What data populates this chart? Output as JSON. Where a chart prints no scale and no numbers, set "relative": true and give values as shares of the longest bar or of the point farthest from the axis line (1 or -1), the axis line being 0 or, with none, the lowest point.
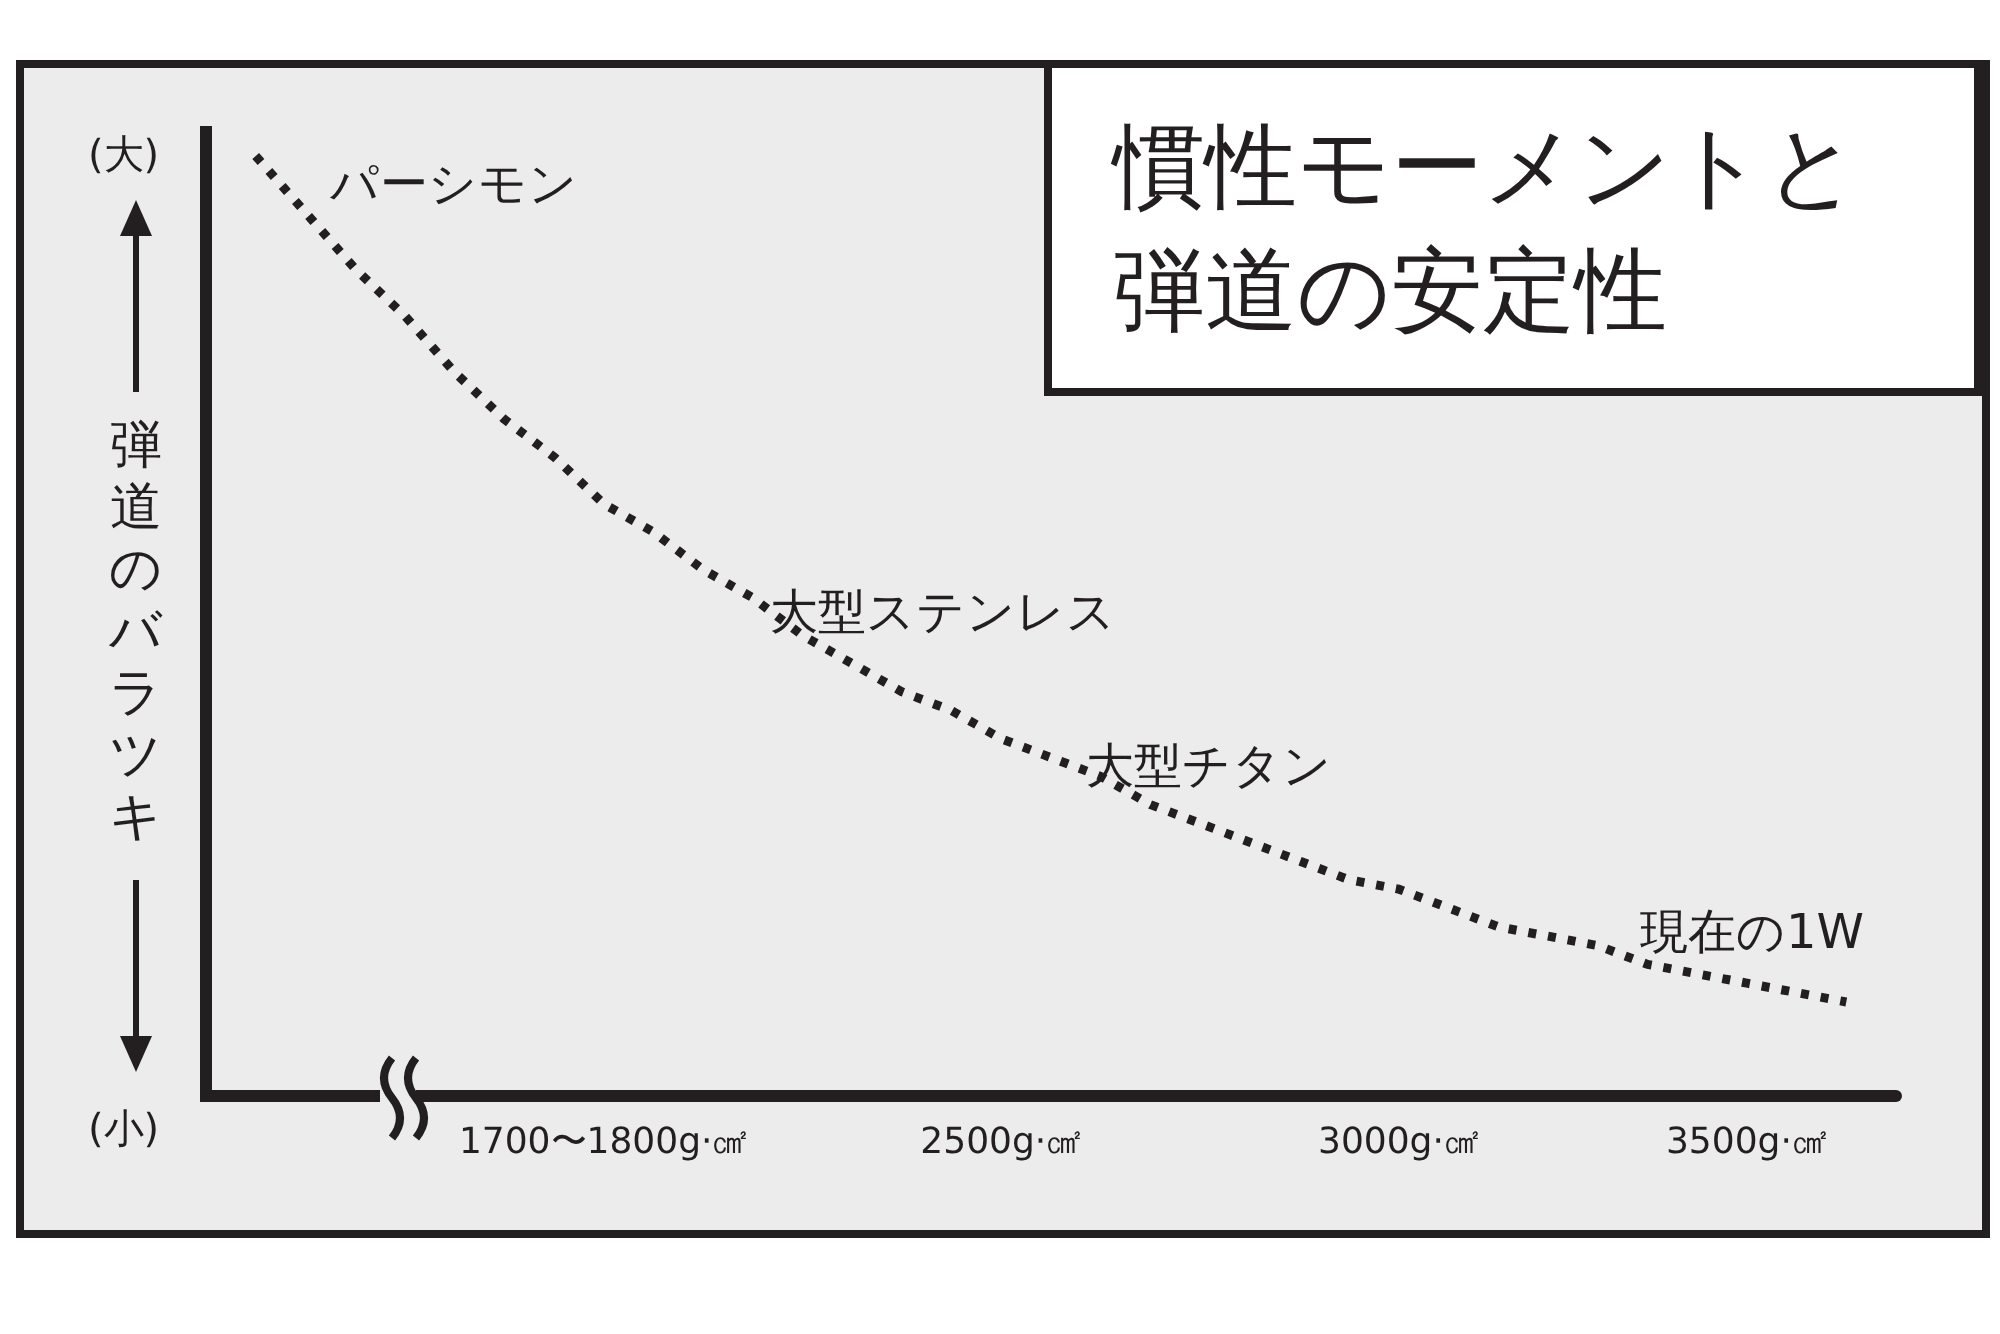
{
  "chart_data": {
    "type": "line",
    "title": "慣性モーメントと弾道の安定性",
    "ylabel": "弾道のバラツキ",
    "annotations": [
      "(大)",
      "(小)",
      "パーシモン",
      "大型ステンレス",
      "大型チタン",
      "現在の1W"
    ],
    "categories": [
      null,
      null,
      null,
      null,
      null,
      null,
      null,
      null,
      "1700〜1800g·㎠",
      null,
      null,
      null,
      null,
      null,
      null,
      null,
      "2500g·㎠",
      null,
      null,
      null,
      null,
      null,
      null,
      null,
      "3000g·㎠",
      null,
      null,
      null,
      null,
      null,
      null,
      "3500g·㎠",
      null,
      null,
      null
    ],
    "relative": true,
    "marker": "none",
    "line_style": "dotted",
    "grid": false,
    "series": [
      {
        "color": "#231f20",
        "values": [
          null,
          1,
          0.94,
          0.88,
          0.83,
          0.77,
          0.72,
          0.68,
          0.63,
          0.6,
          0.56,
          0.53,
          0.49,
          0.46,
          0.43,
          0.41,
          0.38,
          0.36,
          0.34,
          0.31,
          0.29,
          0.27,
          0.25,
          0.23,
          0.22,
          0.2,
          0.18,
          0.17,
          0.16,
          0.14,
          0.13,
          0.12,
          0.11,
          0.1,
          null
        ]
      }
    ]
  }
}
